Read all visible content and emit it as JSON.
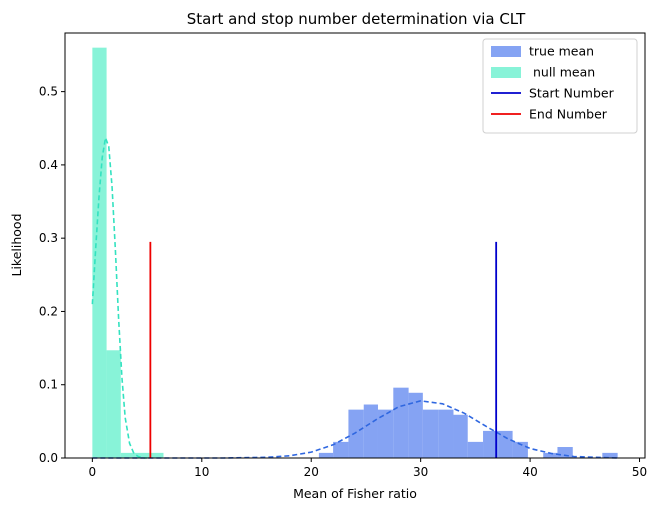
{
  "chart_data": {
    "type": "histogram",
    "title": "Start and stop number determination via CLT",
    "xlabel": "Mean of Fisher ratio",
    "ylabel": "Likelihood",
    "xlim": [
      -2.5,
      50.5
    ],
    "ylim": [
      0,
      0.58
    ],
    "xticks": [
      0,
      10,
      20,
      30,
      40,
      50
    ],
    "yticks": [
      0.0,
      0.1,
      0.2,
      0.3,
      0.4,
      0.5
    ],
    "legend_position": "top-right",
    "series": [
      {
        "name": "true mean",
        "kind": "histogram",
        "color": "#6a8ff0",
        "bins": [
          {
            "x0": 20.7,
            "x1": 22.0,
            "value": 0.007
          },
          {
            "x0": 22.0,
            "x1": 23.4,
            "value": 0.022
          },
          {
            "x0": 23.4,
            "x1": 24.8,
            "value": 0.066
          },
          {
            "x0": 24.8,
            "x1": 26.1,
            "value": 0.073
          },
          {
            "x0": 26.1,
            "x1": 27.5,
            "value": 0.066
          },
          {
            "x0": 27.5,
            "x1": 28.9,
            "value": 0.096
          },
          {
            "x0": 28.9,
            "x1": 30.2,
            "value": 0.089
          },
          {
            "x0": 30.2,
            "x1": 31.6,
            "value": 0.066
          },
          {
            "x0": 31.6,
            "x1": 33.0,
            "value": 0.066
          },
          {
            "x0": 33.0,
            "x1": 34.3,
            "value": 0.059
          },
          {
            "x0": 34.3,
            "x1": 35.7,
            "value": 0.022
          },
          {
            "x0": 35.7,
            "x1": 37.1,
            "value": 0.037
          },
          {
            "x0": 37.1,
            "x1": 38.4,
            "value": 0.037
          },
          {
            "x0": 38.4,
            "x1": 39.8,
            "value": 0.022
          },
          {
            "x0": 39.8,
            "x1": 41.2,
            "value": 0.0
          },
          {
            "x0": 41.2,
            "x1": 42.5,
            "value": 0.007
          },
          {
            "x0": 42.5,
            "x1": 43.9,
            "value": 0.015
          },
          {
            "x0": 43.9,
            "x1": 45.3,
            "value": 0.0
          },
          {
            "x0": 45.3,
            "x1": 46.6,
            "value": 0.0
          },
          {
            "x0": 46.6,
            "x1": 48.0,
            "value": 0.007
          }
        ]
      },
      {
        "name": " null mean",
        "kind": "histogram",
        "color": "#6ef0cf",
        "bins": [
          {
            "x0": 0.0,
            "x1": 1.3,
            "value": 0.56
          },
          {
            "x0": 1.3,
            "x1": 2.6,
            "value": 0.147
          },
          {
            "x0": 2.6,
            "x1": 3.9,
            "value": 0.007
          },
          {
            "x0": 3.9,
            "x1": 5.2,
            "value": 0.007
          },
          {
            "x0": 5.2,
            "x1": 6.5,
            "value": 0.007
          }
        ]
      },
      {
        "name": "true mean fit",
        "kind": "line",
        "style": "dashed",
        "color": "#2f67e0",
        "x": [
          0,
          4,
          8,
          12,
          16,
          18,
          20,
          22,
          24,
          26,
          28,
          30,
          32,
          34,
          36,
          38,
          40,
          42,
          44,
          46,
          48
        ],
        "y": [
          0.0,
          0.0,
          0.0,
          0.0,
          0.001,
          0.003,
          0.008,
          0.018,
          0.034,
          0.053,
          0.07,
          0.078,
          0.074,
          0.061,
          0.043,
          0.026,
          0.013,
          0.006,
          0.002,
          0.001,
          0.0
        ]
      },
      {
        "name": "null mean fit",
        "kind": "line",
        "style": "dashed",
        "color": "#33e2c0",
        "x": [
          0.0,
          0.3,
          0.6,
          0.9,
          1.2,
          1.5,
          1.8,
          2.1,
          2.4,
          2.7,
          3.0,
          3.4,
          3.8,
          4.2,
          4.6,
          5.0
        ],
        "y": [
          0.21,
          0.285,
          0.355,
          0.41,
          0.437,
          0.425,
          0.37,
          0.285,
          0.19,
          0.11,
          0.055,
          0.02,
          0.006,
          0.002,
          0.0,
          0.0
        ]
      },
      {
        "name": "Start Number",
        "kind": "vline",
        "color": "#0000cc",
        "x": 36.9,
        "y0": 0.0,
        "y1": 0.295
      },
      {
        "name": "End Number",
        "kind": "vline",
        "color": "#ee0000",
        "x": 5.3,
        "y0": 0.0,
        "y1": 0.295
      }
    ],
    "legend": [
      {
        "label": "true mean",
        "kind": "patch",
        "color": "#6a8ff0"
      },
      {
        "label": " null mean",
        "kind": "patch",
        "color": "#6ef0cf"
      },
      {
        "label": "Start Number",
        "kind": "line",
        "color": "#0000cc"
      },
      {
        "label": "End Number",
        "kind": "line",
        "color": "#ee0000"
      }
    ]
  }
}
